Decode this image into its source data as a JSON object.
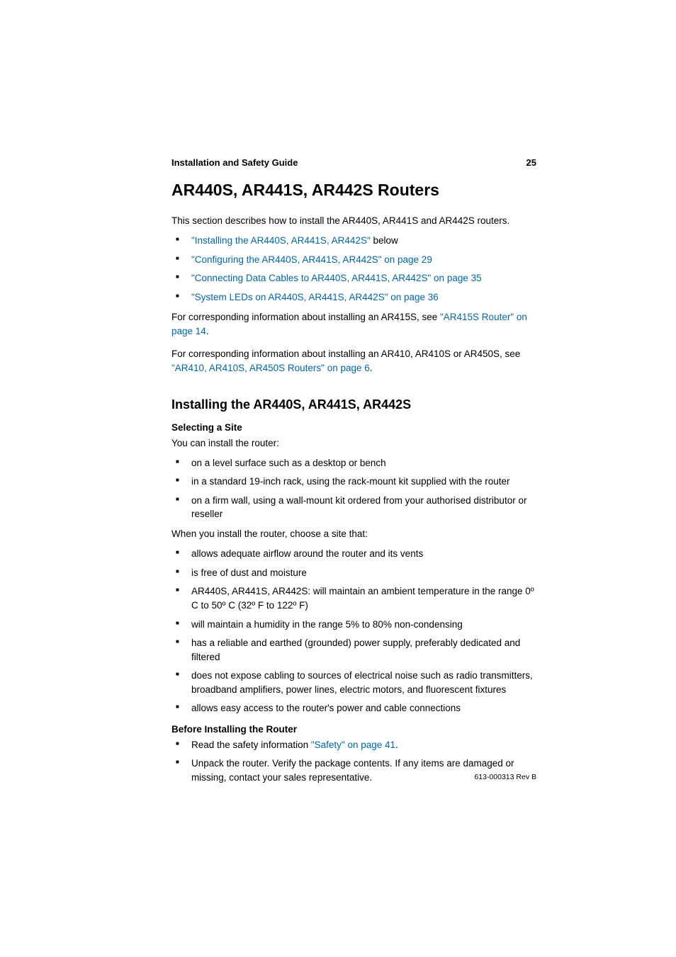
{
  "header": {
    "title": "Installation and Safety Guide",
    "page": "25"
  },
  "mainHeading": "AR440S, AR441S, AR442S Routers",
  "intro": "This section describes how to install the AR440S, AR441S and AR442S routers.",
  "introLinks": {
    "item1_link": "\"Installing the AR440S, AR441S, AR442S\"",
    "item1_suffix": " below",
    "item2": "\"Configuring the AR440S, AR441S, AR442S\" on page 29",
    "item3": "\"Connecting Data Cables to AR440S, AR441S, AR442S\" on page 35",
    "item4": "\"System LEDs on AR440S, AR441S, AR442S\" on page 36"
  },
  "para1_prefix": "For corresponding information about installing an AR415S, see ",
  "para1_link": "\"AR415S Router\" on page 14",
  "para1_suffix": ".",
  "para2_prefix": "For corresponding information about installing an AR410, AR410S or AR450S, see ",
  "para2_link": "\"AR410, AR410S, AR450S Routers\" on page 6",
  "para2_suffix": ".",
  "subHeading": "Installing the AR440S, AR441S, AR442S",
  "selectingSite": {
    "label": "Selecting a Site",
    "intro": "You can install the router:",
    "items": {
      "i1": "on a level surface such as a desktop or bench",
      "i2": "in a standard 19-inch rack, using the rack-mount kit supplied with the router",
      "i3": "on a firm wall, using a wall-mount kit ordered from your authorised distributor or reseller"
    },
    "chooseIntro": "When you install the router, choose a site that:",
    "chooseItems": {
      "c1": "allows adequate airflow around the router and its vents",
      "c2": "is free of dust and moisture",
      "c3": "AR440S, AR441S, AR442S: will maintain an ambient temperature in the range 0º C to 50º C (32º F to 122º F)",
      "c4": "will maintain a humidity in the range 5% to 80% non-condensing",
      "c5": "has a reliable and earthed (grounded) power supply, preferably dedicated and filtered",
      "c6": "does not expose cabling to sources of electrical noise such as radio transmitters, broadband amplifiers, power lines, electric motors, and fluorescent fixtures",
      "c7": "allows easy access to the router's power and cable connections"
    }
  },
  "beforeInstalling": {
    "label": "Before Installing the Router",
    "item1_prefix": "Read the safety information ",
    "item1_link": "\"Safety\" on page 41",
    "item1_suffix": ".",
    "item2": "Unpack the router. Verify the package contents. If any items are damaged or missing, contact your sales representative."
  },
  "footer": "613-000313 Rev B",
  "colors": {
    "link": "#0066aa",
    "text": "#000000",
    "background": "#ffffff"
  },
  "typography": {
    "body_fontsize": 13.5,
    "main_heading_fontsize": 23,
    "sub_heading_fontsize": 18,
    "header_fontsize": 13,
    "footer_fontsize": 10.5
  }
}
